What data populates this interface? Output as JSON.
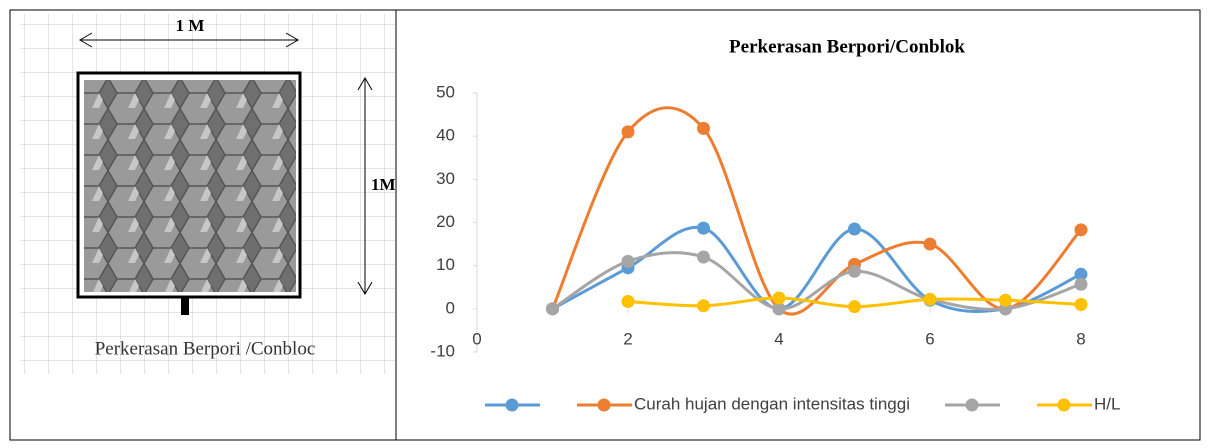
{
  "figure": {
    "width_label": "1 M",
    "height_label": "1M",
    "caption": "Perkerasan Berpori /Conbloc"
  },
  "chart_data": {
    "type": "line",
    "title": "Perkerasan Berpori/Conblok",
    "smooth": true,
    "x": [
      1,
      2,
      3,
      4,
      5,
      6,
      7,
      8
    ],
    "xlim": [
      0,
      9.5
    ],
    "xticks": [
      0,
      2,
      4,
      6,
      8
    ],
    "ylim": [
      -10,
      50
    ],
    "yticks": [
      -10,
      0,
      10,
      20,
      30,
      40,
      50
    ],
    "legend": "bottom",
    "series": [
      {
        "color": "#5b9bd5",
        "values": [
          0,
          9.5,
          18.7,
          0,
          18.5,
          2,
          0,
          8
        ]
      },
      {
        "name": "Curah hujan dengan intensitas tinggi",
        "color": "#ed7d31",
        "values": [
          0,
          41,
          41.8,
          0,
          10.3,
          15,
          0,
          18.3
        ]
      },
      {
        "color": "#a5a5a5",
        "values": [
          0,
          11,
          12,
          0,
          8.7,
          2.2,
          0,
          5.7
        ]
      },
      {
        "name": "H/L",
        "color": "#ffc000",
        "values": [
          null,
          1.7,
          0.7,
          2.5,
          0.5,
          2.2,
          2,
          1
        ]
      }
    ]
  }
}
